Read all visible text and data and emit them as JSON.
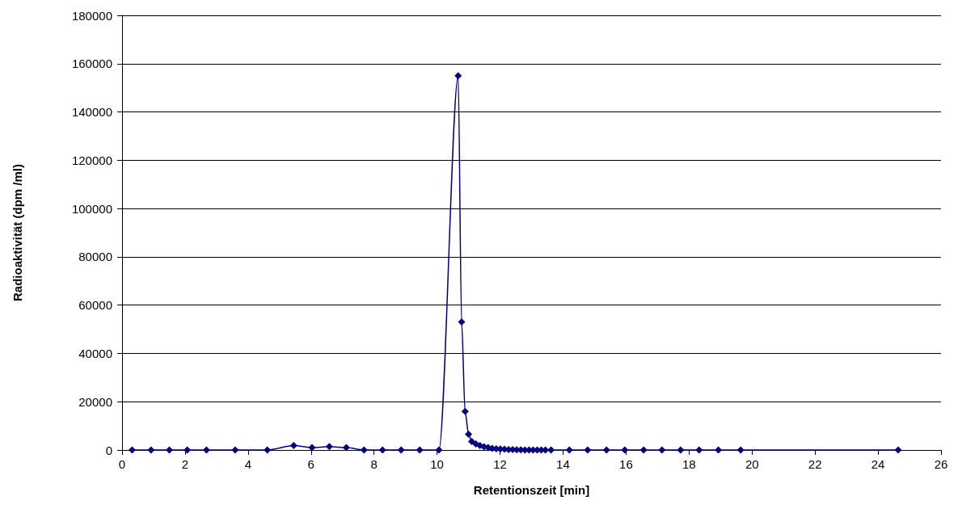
{
  "chart_data": {
    "type": "line",
    "xlabel": "Retentionszeit [min]",
    "ylabel": "Radioaktivität (dpm /ml)",
    "xlim": [
      0,
      26
    ],
    "xticks": [
      0,
      2,
      4,
      6,
      8,
      10,
      12,
      14,
      16,
      18,
      20,
      22,
      24,
      26
    ],
    "ylim": [
      0,
      180000
    ],
    "yticks": [
      0,
      20000,
      40000,
      60000,
      80000,
      100000,
      120000,
      140000,
      160000,
      180000
    ],
    "grid": "y",
    "marker": "diamond",
    "line_style": "solid",
    "series": [
      {
        "color": "#000080",
        "x": [
          0.32,
          0.92,
          1.5,
          2.07,
          2.68,
          3.59,
          4.61,
          5.45,
          6.03,
          6.58,
          7.12,
          7.68,
          8.27,
          8.86,
          9.45,
          10.06,
          10.67,
          10.78,
          10.89,
          11.0,
          11.1,
          11.23,
          11.36,
          11.49,
          11.62,
          11.75,
          11.88,
          12.01,
          12.14,
          12.27,
          12.4,
          12.53,
          12.66,
          12.79,
          12.92,
          13.05,
          13.18,
          13.31,
          13.44,
          13.62,
          14.2,
          14.78,
          15.38,
          15.96,
          16.56,
          17.14,
          17.73,
          18.32,
          18.93,
          19.64,
          24.64
        ],
        "values": [
          0,
          0,
          0,
          0,
          0,
          0,
          0,
          1800,
          1000,
          1400,
          1000,
          0,
          0,
          0,
          0,
          0,
          155000,
          53000,
          16000,
          6500,
          3500,
          2500,
          1800,
          1300,
          1000,
          700,
          500,
          400,
          300,
          200,
          200,
          100,
          100,
          0,
          0,
          0,
          0,
          0,
          0,
          0,
          0,
          0,
          0,
          0,
          0,
          0,
          0,
          0,
          0,
          0,
          0
        ]
      }
    ]
  }
}
